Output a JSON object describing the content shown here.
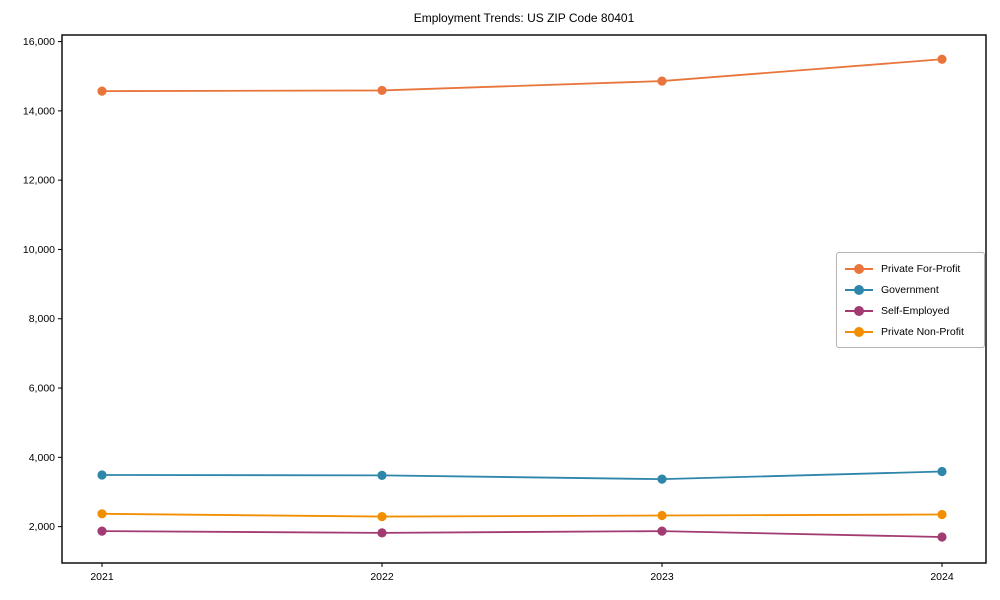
{
  "title": "Employment Trends: US ZIP Code 80401",
  "chart_data": {
    "type": "line",
    "title": "Employment Trends: US ZIP Code 80401",
    "xlabel": "",
    "ylabel": "",
    "x": [
      2021,
      2022,
      2023,
      2024
    ],
    "x_tick_labels": [
      "2021",
      "2022",
      "2023",
      "2024"
    ],
    "y_ticks": [
      2000,
      4000,
      6000,
      8000,
      10000,
      12000,
      14000,
      16000
    ],
    "y_tick_labels": [
      "2,000",
      "4,000",
      "6,000",
      "8,000",
      "10,000",
      "12,000",
      "14,000",
      "16,000"
    ],
    "ylim": [
      950,
      16190
    ],
    "grid": false,
    "legend_position": "center right",
    "series": [
      {
        "name": "Private For-Profit",
        "color": "#E8763C",
        "values": [
          14570,
          14590,
          14860,
          15490
        ]
      },
      {
        "name": "Government",
        "color": "#2E86AB",
        "values": [
          3490,
          3480,
          3370,
          3590
        ]
      },
      {
        "name": "Self-Employed",
        "color": "#A23B72",
        "values": [
          1870,
          1820,
          1870,
          1700
        ]
      },
      {
        "name": "Private Non-Profit",
        "color": "#F18F01",
        "values": [
          2370,
          2290,
          2320,
          2350
        ]
      }
    ]
  }
}
